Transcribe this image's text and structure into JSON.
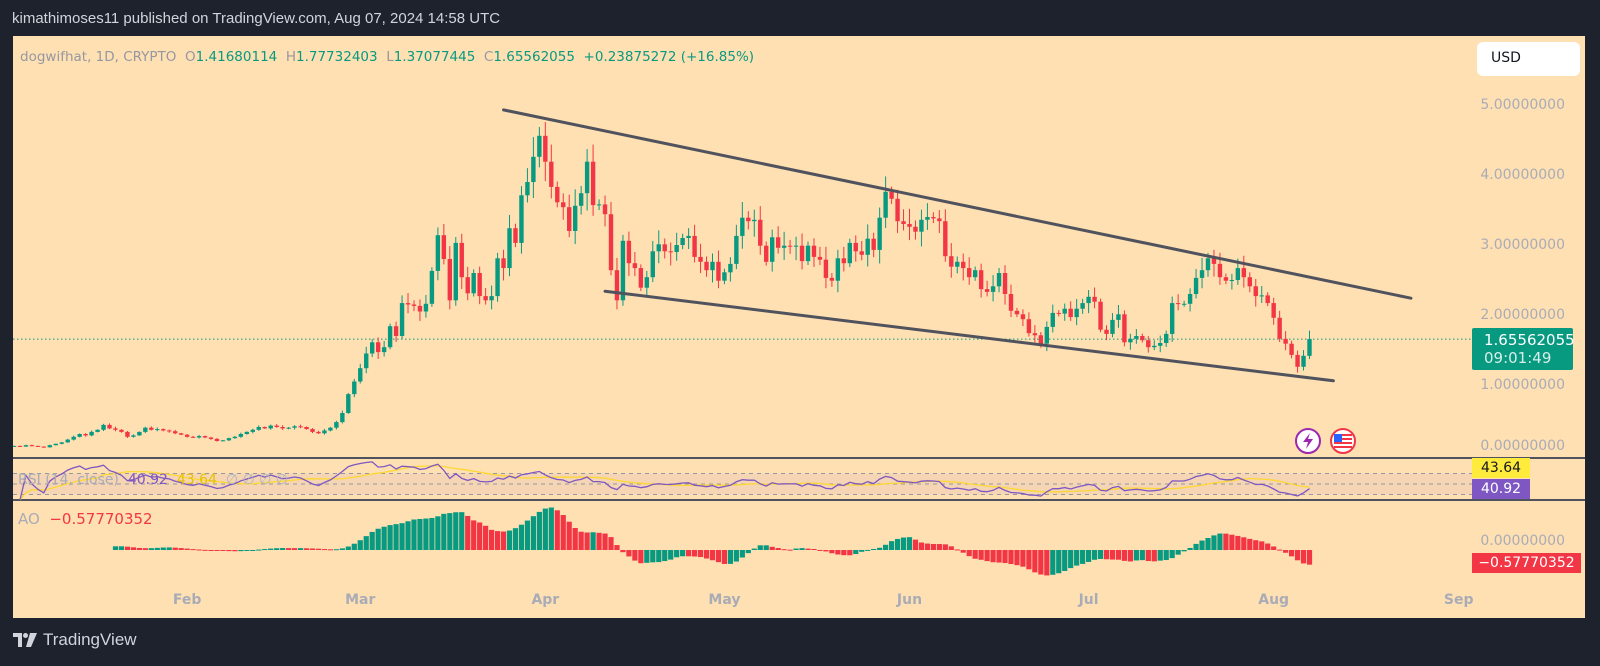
{
  "header": {
    "publish_line": "kimathimoses11 published on TradingView.com, Aug 07, 2024 14:58 UTC"
  },
  "legend": {
    "symbol": "dogwifhat, 1D, CRYPTO",
    "o_label": "O",
    "open": "1.41680114",
    "h_label": "H",
    "high": "1.77732403",
    "l_label": "L",
    "low": "1.37077445",
    "c_label": "C",
    "close": "1.65562055",
    "change": "+0.23875272 (+16.85%)"
  },
  "currency_button": "USD",
  "price_label": {
    "price": "1.65562055",
    "countdown": "09:01:49"
  },
  "rsi": {
    "label": "RSI (14, close)",
    "value": "40.92",
    "ma_value": "43.64",
    "extras": "∅ ∅ ∅ ∅",
    "levels": [
      70,
      50,
      30
    ]
  },
  "ao": {
    "label": "AO",
    "value": "−0.57770352",
    "zero_label": "0.00000000"
  },
  "events": {
    "icons": [
      "lightning-icon",
      "us-flag-icon"
    ]
  },
  "footer": {
    "brand": "TradingView"
  },
  "colors": {
    "background": "#ffe0b2",
    "up": "#089981",
    "down": "#f23645",
    "rsi_line": "#7e57c2",
    "rsi_ma": "#fdd835",
    "trendline": "#50535e",
    "frame": "#1e222d"
  },
  "chart_data": {
    "type": "candlestick",
    "title": "dogwifhat, 1D, CRYPTO",
    "y_ticks": [
      0,
      1,
      2,
      3,
      4,
      5
    ],
    "y_tick_labels": [
      "0.00000000",
      "1.00000000",
      "2.00000000",
      "3.00000000",
      "4.00000000",
      "5.00000000"
    ],
    "ylim": [
      0,
      5.2
    ],
    "x_ticks": [
      {
        "date": "2024-02-01",
        "label": "Feb"
      },
      {
        "date": "2024-03-01",
        "label": "Mar"
      },
      {
        "date": "2024-04-01",
        "label": "Apr"
      },
      {
        "date": "2024-05-01",
        "label": "May"
      },
      {
        "date": "2024-06-01",
        "label": "Jun"
      },
      {
        "date": "2024-07-01",
        "label": "Jul"
      },
      {
        "date": "2024-08-01",
        "label": "Aug"
      },
      {
        "date": "2024-09-01",
        "label": "Sep"
      }
    ],
    "last_candle": {
      "date": "2024-08-07",
      "open": 1.41680114,
      "high": 1.77732403,
      "low": 1.37077445,
      "close": 1.65562055
    },
    "drawings": [
      {
        "name": "upper-trendline",
        "from": {
          "date": "2024-03-25",
          "price": 4.93
        },
        "to": {
          "date": "2024-08-24",
          "price": 2.24
        }
      },
      {
        "name": "lower-trendline",
        "from": {
          "date": "2024-04-11",
          "price": 2.34
        },
        "to": {
          "date": "2024-08-11",
          "price": 1.06
        }
      }
    ],
    "closes": [
      [
        "2024-01-03",
        0.13
      ],
      [
        "2024-01-04",
        0.12
      ],
      [
        "2024-01-05",
        0.14
      ],
      [
        "2024-01-06",
        0.13
      ],
      [
        "2024-01-07",
        0.12
      ],
      [
        "2024-01-08",
        0.11
      ],
      [
        "2024-01-09",
        0.14
      ],
      [
        "2024-01-10",
        0.16
      ],
      [
        "2024-01-11",
        0.18
      ],
      [
        "2024-01-12",
        0.22
      ],
      [
        "2024-01-13",
        0.26
      ],
      [
        "2024-01-14",
        0.3
      ],
      [
        "2024-01-15",
        0.28
      ],
      [
        "2024-01-16",
        0.33
      ],
      [
        "2024-01-17",
        0.36
      ],
      [
        "2024-01-18",
        0.43
      ],
      [
        "2024-01-19",
        0.38
      ],
      [
        "2024-01-20",
        0.36
      ],
      [
        "2024-01-21",
        0.33
      ],
      [
        "2024-01-22",
        0.26
      ],
      [
        "2024-01-23",
        0.28
      ],
      [
        "2024-01-24",
        0.33
      ],
      [
        "2024-01-25",
        0.39
      ],
      [
        "2024-01-26",
        0.36
      ],
      [
        "2024-01-27",
        0.37
      ],
      [
        "2024-01-28",
        0.35
      ],
      [
        "2024-01-29",
        0.34
      ],
      [
        "2024-01-30",
        0.31
      ],
      [
        "2024-01-31",
        0.29
      ],
      [
        "2024-02-01",
        0.26
      ],
      [
        "2024-02-02",
        0.25
      ],
      [
        "2024-02-03",
        0.27
      ],
      [
        "2024-02-04",
        0.25
      ],
      [
        "2024-02-05",
        0.23
      ],
      [
        "2024-02-06",
        0.2
      ],
      [
        "2024-02-07",
        0.21
      ],
      [
        "2024-02-08",
        0.24
      ],
      [
        "2024-02-09",
        0.26
      ],
      [
        "2024-02-10",
        0.3
      ],
      [
        "2024-02-11",
        0.33
      ],
      [
        "2024-02-12",
        0.36
      ],
      [
        "2024-02-13",
        0.4
      ],
      [
        "2024-02-14",
        0.38
      ],
      [
        "2024-02-15",
        0.42
      ],
      [
        "2024-02-16",
        0.4
      ],
      [
        "2024-02-17",
        0.38
      ],
      [
        "2024-02-18",
        0.39
      ],
      [
        "2024-02-19",
        0.41
      ],
      [
        "2024-02-20",
        0.4
      ],
      [
        "2024-02-21",
        0.37
      ],
      [
        "2024-02-22",
        0.33
      ],
      [
        "2024-02-23",
        0.31
      ],
      [
        "2024-02-24",
        0.35
      ],
      [
        "2024-02-25",
        0.39
      ],
      [
        "2024-02-26",
        0.47
      ],
      [
        "2024-02-27",
        0.6
      ],
      [
        "2024-02-28",
        0.87
      ],
      [
        "2024-02-29",
        1.05
      ],
      [
        "2024-03-01",
        1.24
      ],
      [
        "2024-03-02",
        1.45
      ],
      [
        "2024-03-03",
        1.61
      ],
      [
        "2024-03-04",
        1.47
      ],
      [
        "2024-03-05",
        1.54
      ],
      [
        "2024-03-06",
        1.84
      ],
      [
        "2024-03-07",
        1.7
      ],
      [
        "2024-03-08",
        2.17
      ],
      [
        "2024-03-09",
        2.15
      ],
      [
        "2024-03-10",
        2.13
      ],
      [
        "2024-03-11",
        2.05
      ],
      [
        "2024-03-12",
        2.16
      ],
      [
        "2024-03-13",
        2.63
      ],
      [
        "2024-03-14",
        3.14
      ],
      [
        "2024-03-15",
        2.8
      ],
      [
        "2024-03-16",
        2.21
      ],
      [
        "2024-03-17",
        3.03
      ],
      [
        "2024-03-18",
        2.54
      ],
      [
        "2024-03-19",
        2.31
      ],
      [
        "2024-03-20",
        2.6
      ],
      [
        "2024-03-21",
        2.27
      ],
      [
        "2024-03-22",
        2.21
      ],
      [
        "2024-03-23",
        2.27
      ],
      [
        "2024-03-24",
        2.81
      ],
      [
        "2024-03-25",
        2.67
      ],
      [
        "2024-03-26",
        3.24
      ],
      [
        "2024-03-27",
        3.03
      ],
      [
        "2024-03-28",
        3.71
      ],
      [
        "2024-03-29",
        3.9
      ],
      [
        "2024-03-30",
        4.26
      ],
      [
        "2024-03-31",
        4.56
      ],
      [
        "2024-04-01",
        4.19
      ],
      [
        "2024-04-02",
        3.83
      ],
      [
        "2024-04-03",
        3.61
      ],
      [
        "2024-04-04",
        3.54
      ],
      [
        "2024-04-05",
        3.2
      ],
      [
        "2024-04-06",
        3.56
      ],
      [
        "2024-04-07",
        3.74
      ],
      [
        "2024-04-08",
        4.19
      ],
      [
        "2024-04-09",
        3.57
      ],
      [
        "2024-04-10",
        3.58
      ],
      [
        "2024-04-11",
        3.44
      ],
      [
        "2024-04-12",
        2.64
      ],
      [
        "2024-04-13",
        2.21
      ],
      [
        "2024-04-14",
        3.06
      ],
      [
        "2024-04-15",
        2.74
      ],
      [
        "2024-04-16",
        2.67
      ],
      [
        "2024-04-17",
        2.39
      ],
      [
        "2024-04-18",
        2.54
      ],
      [
        "2024-04-19",
        2.91
      ],
      [
        "2024-04-20",
        3.01
      ],
      [
        "2024-04-21",
        2.91
      ],
      [
        "2024-04-22",
        2.9
      ],
      [
        "2024-04-23",
        3.0
      ],
      [
        "2024-04-24",
        3.1
      ],
      [
        "2024-04-25",
        3.13
      ],
      [
        "2024-04-26",
        2.83
      ],
      [
        "2024-04-27",
        2.76
      ],
      [
        "2024-04-28",
        2.64
      ],
      [
        "2024-04-29",
        2.76
      ],
      [
        "2024-04-30",
        2.49
      ],
      [
        "2024-05-01",
        2.61
      ],
      [
        "2024-05-02",
        2.73
      ],
      [
        "2024-05-03",
        3.13
      ],
      [
        "2024-05-04",
        3.39
      ],
      [
        "2024-05-05",
        3.34
      ],
      [
        "2024-05-06",
        3.36
      ],
      [
        "2024-05-07",
        2.99
      ],
      [
        "2024-05-08",
        2.76
      ],
      [
        "2024-05-09",
        3.11
      ],
      [
        "2024-05-10",
        2.96
      ],
      [
        "2024-05-11",
        2.99
      ],
      [
        "2024-05-12",
        2.98
      ],
      [
        "2024-05-13",
        2.99
      ],
      [
        "2024-05-14",
        2.77
      ],
      [
        "2024-05-15",
        2.99
      ],
      [
        "2024-05-16",
        2.83
      ],
      [
        "2024-05-17",
        2.79
      ],
      [
        "2024-05-18",
        2.53
      ],
      [
        "2024-05-19",
        2.49
      ],
      [
        "2024-05-20",
        2.81
      ],
      [
        "2024-05-21",
        2.74
      ],
      [
        "2024-05-22",
        3.03
      ],
      [
        "2024-05-23",
        2.91
      ],
      [
        "2024-05-24",
        2.86
      ],
      [
        "2024-05-25",
        3.09
      ],
      [
        "2024-05-26",
        2.93
      ],
      [
        "2024-05-27",
        3.39
      ],
      [
        "2024-05-28",
        3.76
      ],
      [
        "2024-05-29",
        3.66
      ],
      [
        "2024-05-30",
        3.34
      ],
      [
        "2024-05-31",
        3.3
      ],
      [
        "2024-06-01",
        3.26
      ],
      [
        "2024-06-02",
        3.19
      ],
      [
        "2024-06-03",
        3.36
      ],
      [
        "2024-06-04",
        3.4
      ],
      [
        "2024-06-05",
        3.38
      ],
      [
        "2024-06-06",
        3.34
      ],
      [
        "2024-06-07",
        2.84
      ],
      [
        "2024-06-08",
        2.69
      ],
      [
        "2024-06-09",
        2.76
      ],
      [
        "2024-06-10",
        2.67
      ],
      [
        "2024-06-11",
        2.54
      ],
      [
        "2024-06-12",
        2.64
      ],
      [
        "2024-06-13",
        2.37
      ],
      [
        "2024-06-14",
        2.33
      ],
      [
        "2024-06-15",
        2.41
      ],
      [
        "2024-06-16",
        2.6
      ],
      [
        "2024-06-17",
        2.3
      ],
      [
        "2024-06-18",
        2.06
      ],
      [
        "2024-06-19",
        2.01
      ],
      [
        "2024-06-20",
        1.94
      ],
      [
        "2024-06-21",
        1.74
      ],
      [
        "2024-06-22",
        1.71
      ],
      [
        "2024-06-23",
        1.59
      ],
      [
        "2024-06-24",
        1.83
      ],
      [
        "2024-06-25",
        2.03
      ],
      [
        "2024-06-26",
        2.02
      ],
      [
        "2024-06-27",
        2.09
      ],
      [
        "2024-06-28",
        1.97
      ],
      [
        "2024-06-29",
        2.09
      ],
      [
        "2024-06-30",
        2.17
      ],
      [
        "2024-07-01",
        2.26
      ],
      [
        "2024-07-02",
        2.19
      ],
      [
        "2024-07-03",
        1.79
      ],
      [
        "2024-07-04",
        1.73
      ],
      [
        "2024-07-05",
        1.93
      ],
      [
        "2024-07-06",
        2.01
      ],
      [
        "2024-07-07",
        1.61
      ],
      [
        "2024-07-08",
        1.66
      ],
      [
        "2024-07-09",
        1.7
      ],
      [
        "2024-07-10",
        1.64
      ],
      [
        "2024-07-11",
        1.54
      ],
      [
        "2024-07-12",
        1.56
      ],
      [
        "2024-07-13",
        1.6
      ],
      [
        "2024-07-14",
        1.73
      ],
      [
        "2024-07-15",
        2.17
      ],
      [
        "2024-07-16",
        2.16
      ],
      [
        "2024-07-17",
        2.16
      ],
      [
        "2024-07-18",
        2.3
      ],
      [
        "2024-07-19",
        2.53
      ],
      [
        "2024-07-20",
        2.64
      ],
      [
        "2024-07-21",
        2.81
      ],
      [
        "2024-07-22",
        2.73
      ],
      [
        "2024-07-23",
        2.54
      ],
      [
        "2024-07-24",
        2.49
      ],
      [
        "2024-07-25",
        2.5
      ],
      [
        "2024-07-26",
        2.67
      ],
      [
        "2024-07-27",
        2.54
      ],
      [
        "2024-07-28",
        2.41
      ],
      [
        "2024-07-29",
        2.27
      ],
      [
        "2024-07-30",
        2.28
      ],
      [
        "2024-07-31",
        2.17
      ],
      [
        "2024-08-01",
        1.96
      ],
      [
        "2024-08-02",
        1.66
      ],
      [
        "2024-08-03",
        1.59
      ],
      [
        "2024-08-04",
        1.43
      ],
      [
        "2024-08-05",
        1.26
      ],
      [
        "2024-08-06",
        1.4168
      ],
      [
        "2024-08-07",
        1.6556
      ]
    ]
  }
}
